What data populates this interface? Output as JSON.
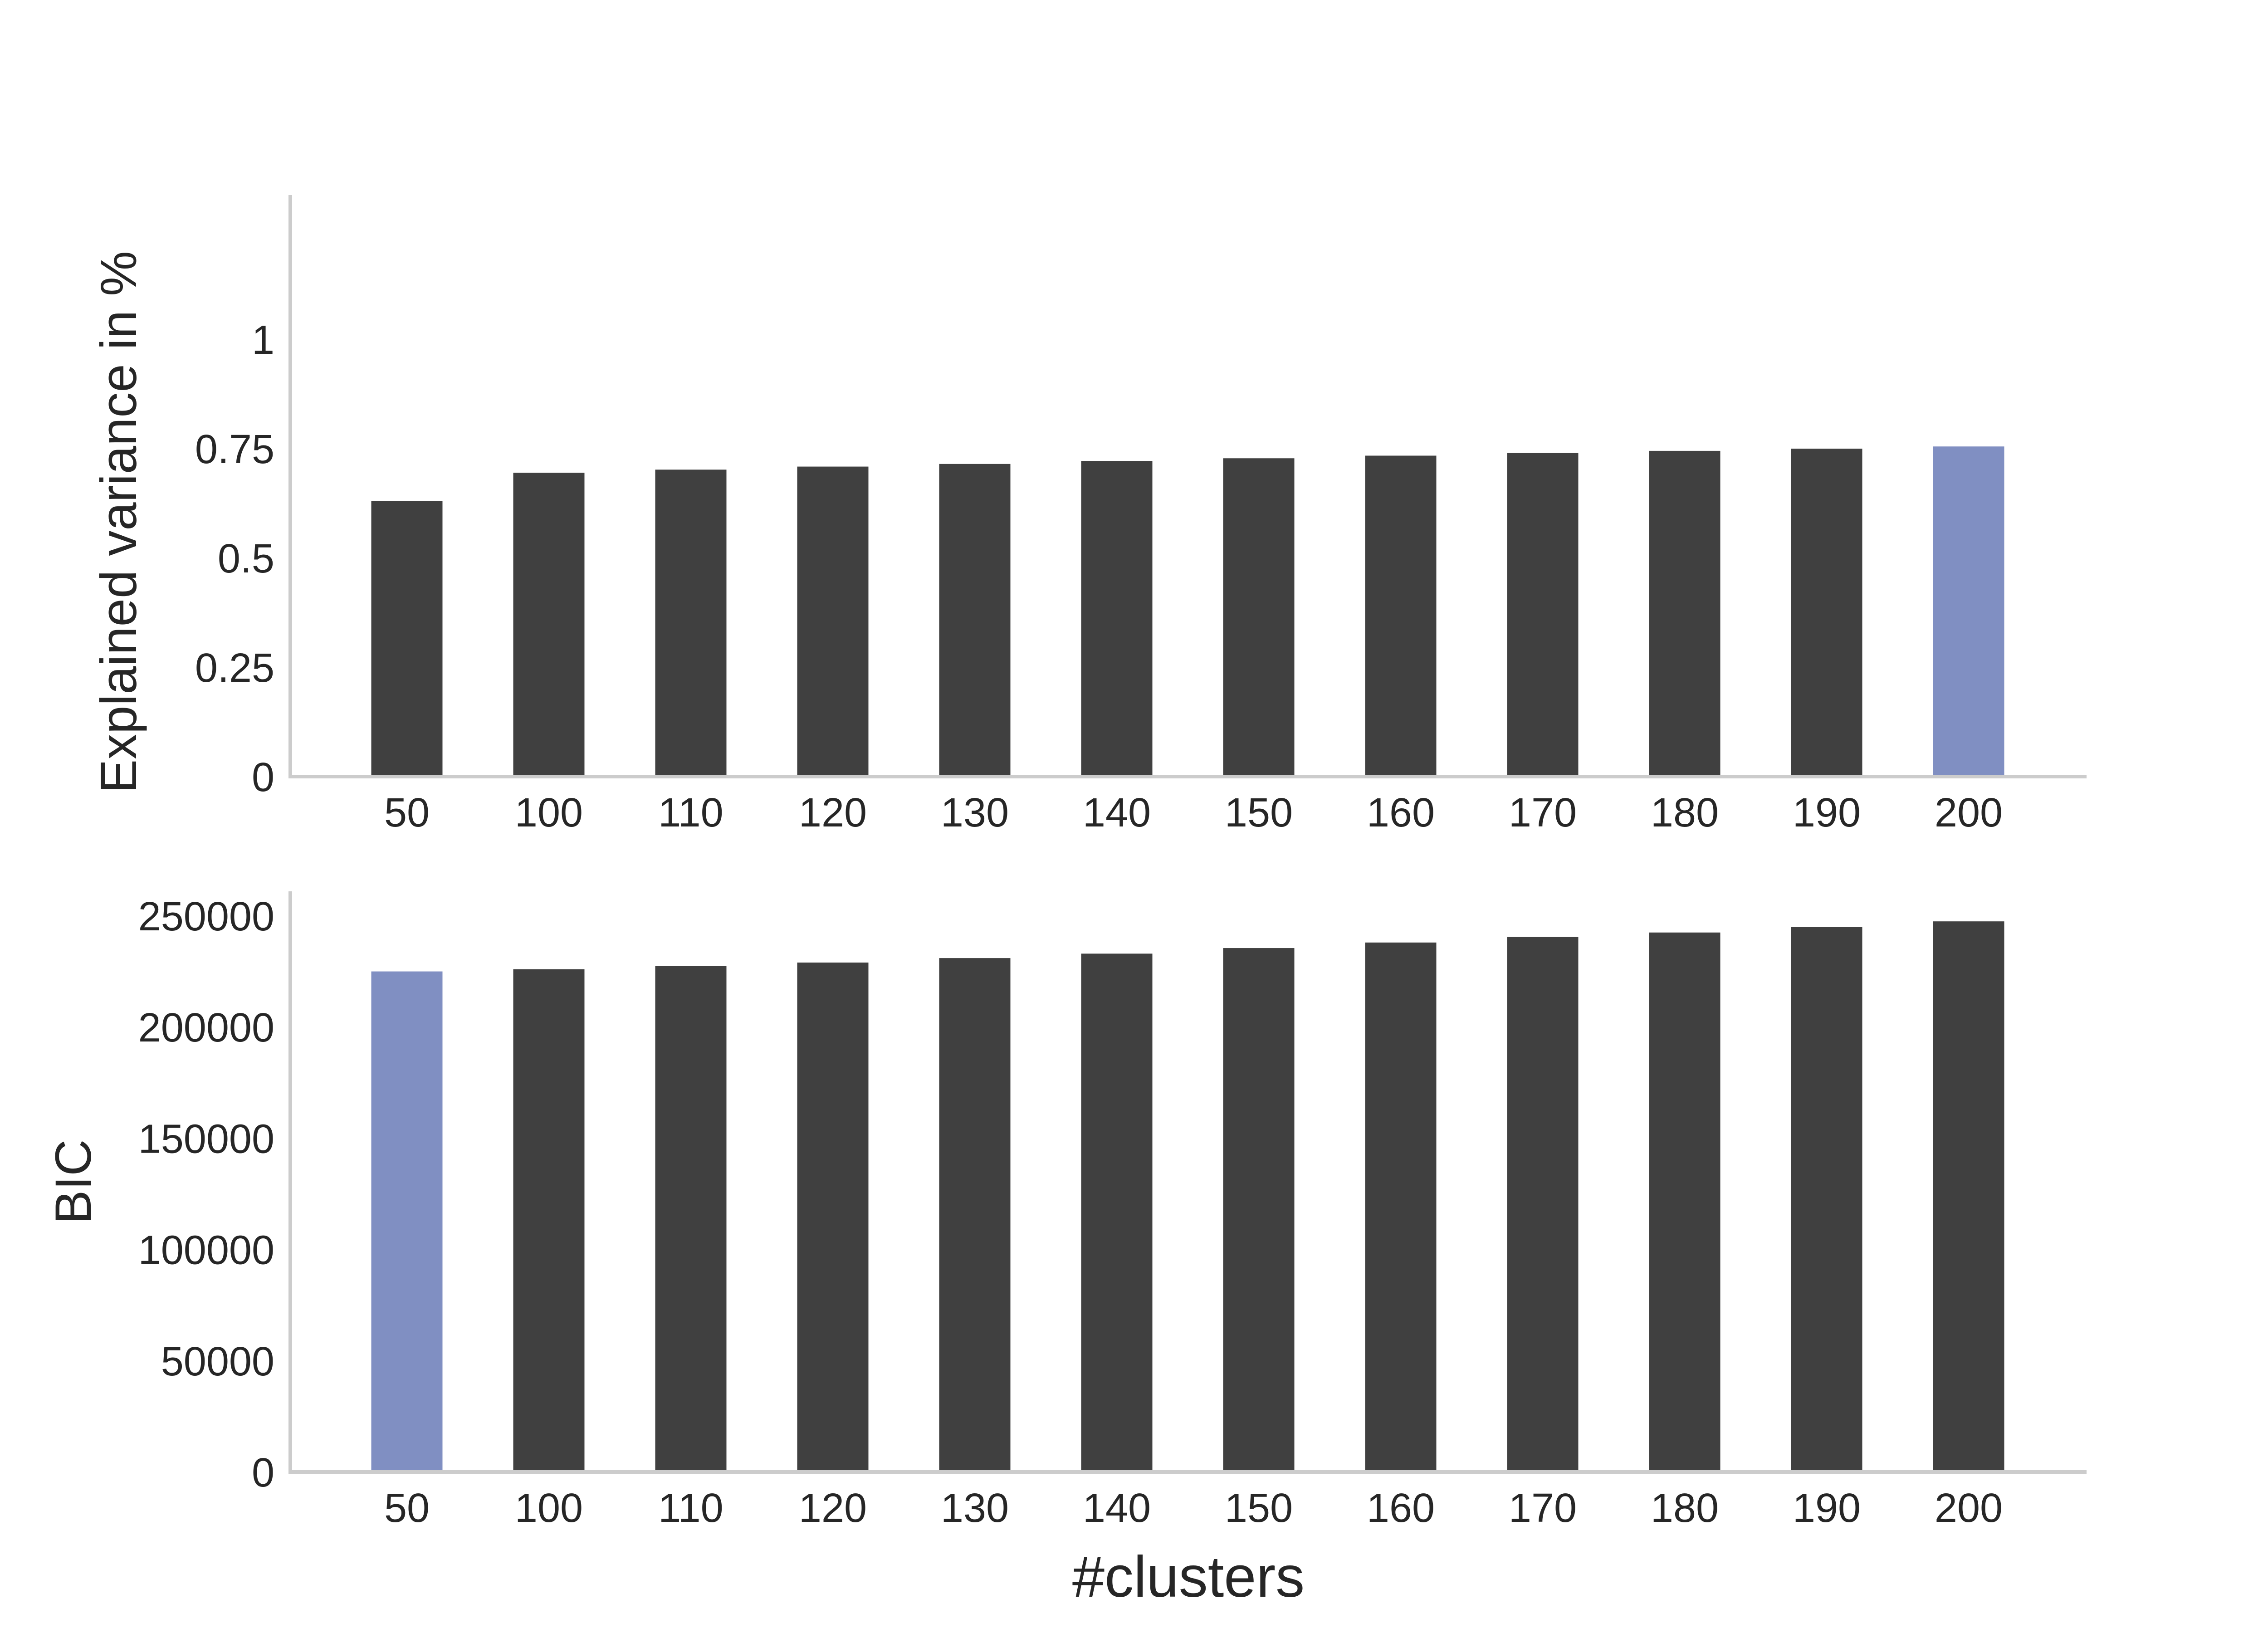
{
  "figure": {
    "xlabel": "#clusters"
  },
  "colors": {
    "bar": "#404040",
    "highlight": "#808fc2",
    "axis": "#cccccc",
    "text": "#262626"
  },
  "chart_data": [
    {
      "type": "bar",
      "categories": [
        "50",
        "100",
        "110",
        "120",
        "130",
        "140",
        "150",
        "160",
        "170",
        "180",
        "190",
        "200"
      ],
      "values": [
        0.63,
        0.695,
        0.702,
        0.709,
        0.715,
        0.722,
        0.728,
        0.734,
        0.74,
        0.745,
        0.75,
        0.755
      ],
      "highlight_index": 11,
      "ylabel": "Explained variance in %",
      "xlabel": "",
      "ylim": [
        0,
        1.33
      ],
      "yticks": [
        0,
        0.25,
        0.5,
        0.75,
        1
      ],
      "ytick_labels": [
        "0",
        "0.25",
        "0.5",
        "0.75",
        "1"
      ],
      "grid": false
    },
    {
      "type": "bar",
      "categories": [
        "50",
        "100",
        "110",
        "120",
        "130",
        "140",
        "150",
        "160",
        "170",
        "180",
        "190",
        "200"
      ],
      "values": [
        225000,
        226000,
        227500,
        229000,
        231000,
        233000,
        235500,
        238000,
        240500,
        242500,
        245000,
        247500
      ],
      "highlight_index": 0,
      "ylabel": "BIC",
      "xlabel": "#clusters",
      "ylim": [
        0,
        261000
      ],
      "yticks": [
        0,
        50000,
        100000,
        150000,
        200000,
        250000
      ],
      "ytick_labels": [
        "0",
        "50000",
        "100000",
        "150000",
        "200000",
        "250000"
      ],
      "grid": false
    }
  ]
}
